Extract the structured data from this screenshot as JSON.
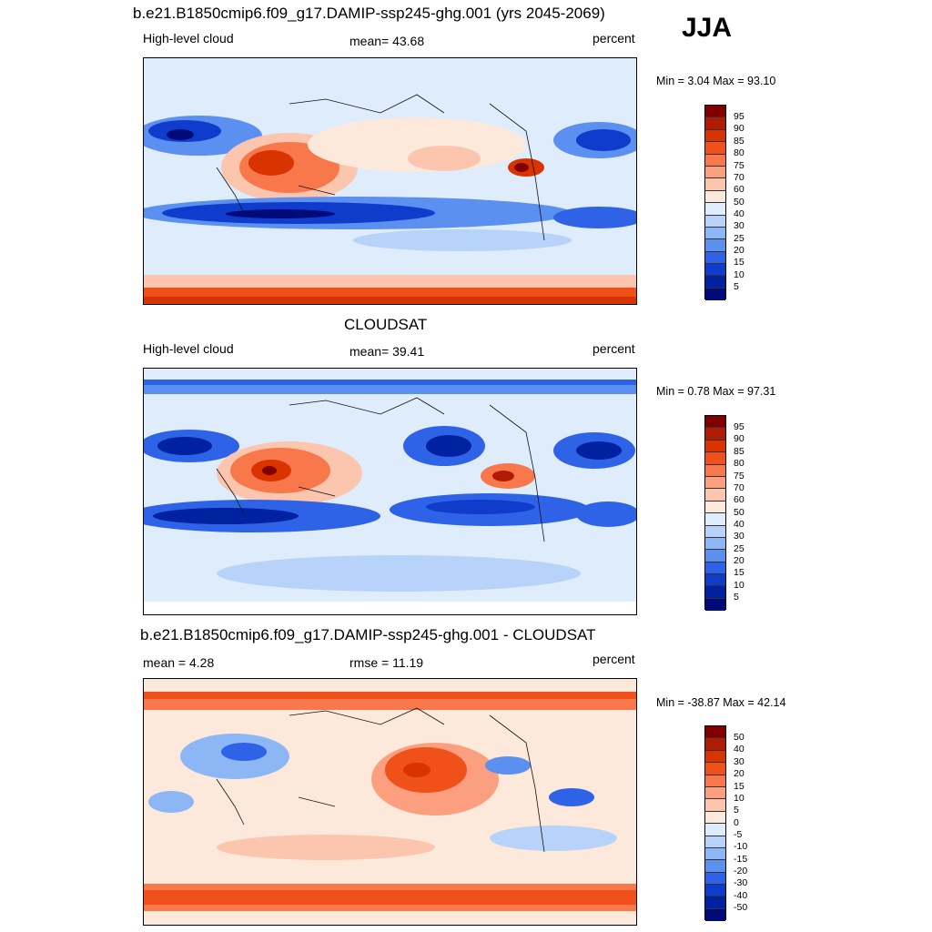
{
  "season": "JJA",
  "panels": [
    {
      "title": "b.e21.B1850cmip6.f09_g17.DAMIP-ssp245-ghg.001 (yrs 2045-2069)",
      "left_label": "High-level cloud",
      "center_label": "mean=  43.68",
      "right_label": "percent",
      "minmax": "Min =   3.04 Max =  93.10",
      "colorbar_labels": [
        "95",
        "90",
        "85",
        "80",
        "75",
        "70",
        "60",
        "50",
        "40",
        "30",
        "25",
        "20",
        "15",
        "10",
        "5"
      ]
    },
    {
      "title": "CLOUDSAT",
      "left_label": "High-level cloud",
      "center_label": "mean=  39.41",
      "right_label": "percent",
      "minmax": "Min =   0.78 Max =  97.31",
      "colorbar_labels": [
        "95",
        "90",
        "85",
        "80",
        "75",
        "70",
        "60",
        "50",
        "40",
        "30",
        "25",
        "20",
        "15",
        "10",
        "5"
      ]
    },
    {
      "title": "b.e21.B1850cmip6.f09_g17.DAMIP-ssp245-ghg.001 - CLOUDSAT",
      "left_label": "mean =   4.28",
      "center_label": "rmse =  11.19",
      "right_label": "percent",
      "minmax": "Min = -38.87 Max =  42.14",
      "colorbar_labels": [
        "50",
        "40",
        "30",
        "20",
        "15",
        "10",
        "5",
        "0",
        "-5",
        "-10",
        "-15",
        "-20",
        "-30",
        "-40",
        "-50"
      ]
    }
  ],
  "colors": {
    "palette": [
      "#800000",
      "#b01b04",
      "#d93300",
      "#f0501a",
      "#f8784b",
      "#fb9f7f",
      "#fcc6ae",
      "#fde9dc",
      "#deecfb",
      "#b7d3fa",
      "#8db7f4",
      "#5b8ff0",
      "#2e63e8",
      "#0f3ccb",
      "#0022a0",
      "#000a78"
    ]
  }
}
